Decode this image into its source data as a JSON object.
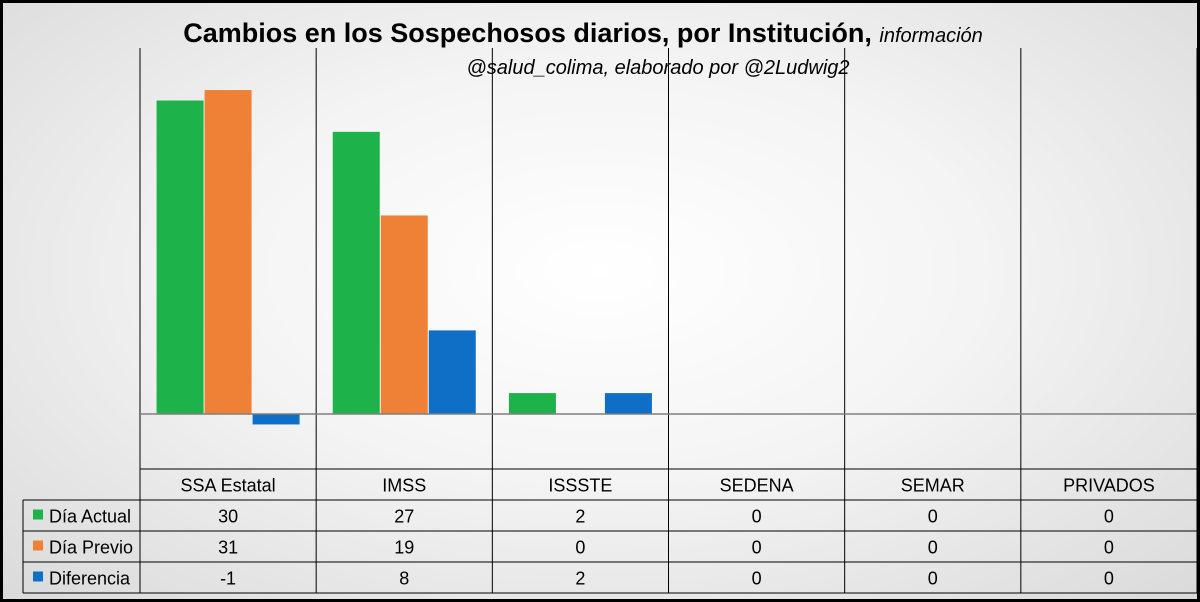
{
  "chart_data": {
    "type": "bar",
    "title": "Cambios en los Sospechosos diarios, por Institución,",
    "title_note": "información",
    "subtitle": "@salud_colima, elaborado por @2Ludwig2",
    "categories": [
      "SSA Estatal",
      "IMSS",
      "ISSSTE",
      "SEDENA",
      "SEMAR",
      "PRIVADOS"
    ],
    "series": [
      {
        "name": "Día Actual",
        "values": [
          30,
          27,
          2,
          0,
          0,
          0
        ],
        "color": "#1EB24A"
      },
      {
        "name": "Día Previo",
        "values": [
          31,
          19,
          0,
          0,
          0,
          0
        ],
        "color": "#EE8135"
      },
      {
        "name": "Diferencia",
        "values": [
          -1,
          8,
          2,
          0,
          0,
          0
        ],
        "color": "#0F6FC6"
      }
    ],
    "ylim": [
      -1.6,
      33
    ],
    "legend": "data-table",
    "grid": false
  }
}
